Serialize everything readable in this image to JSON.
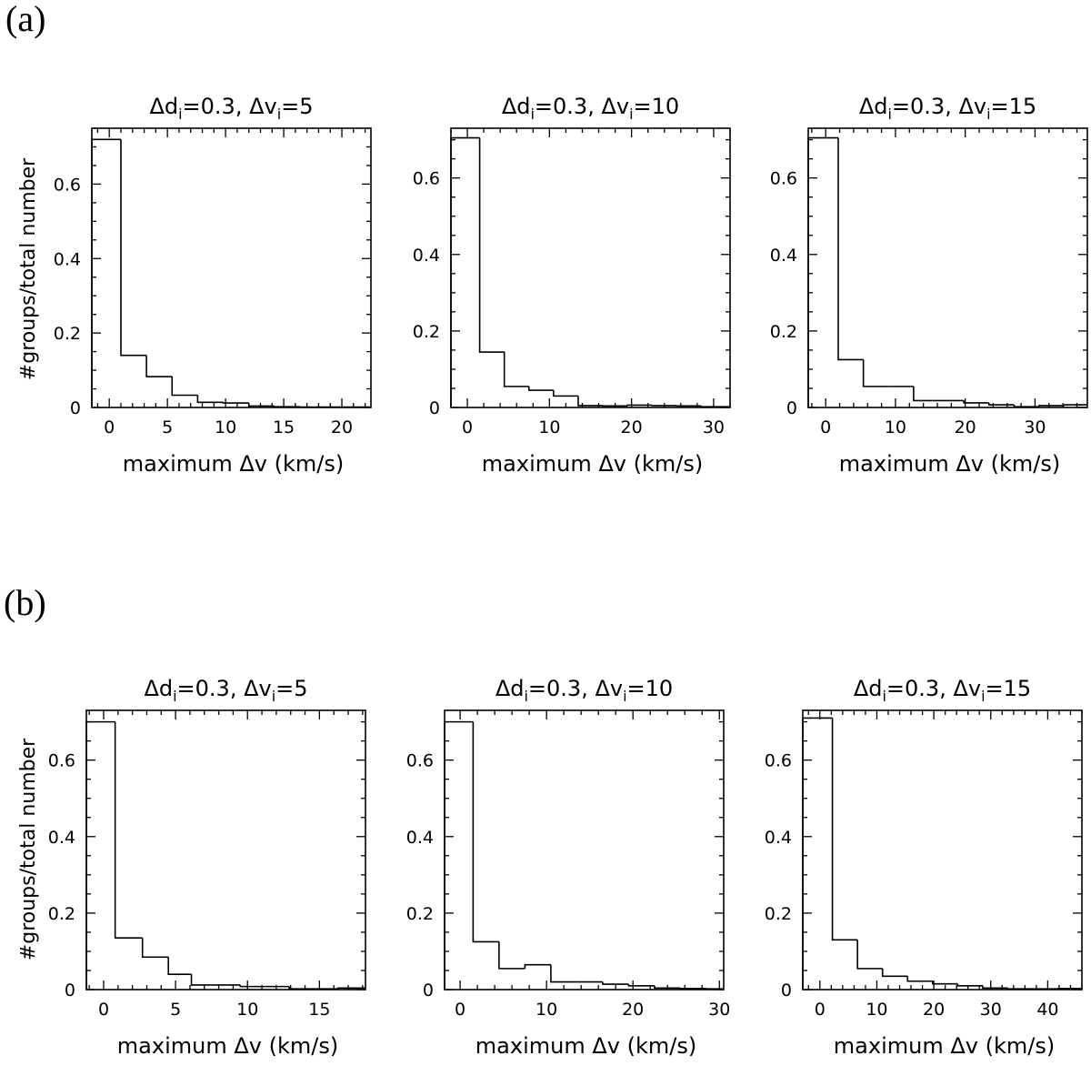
{
  "figure": {
    "panel_a_label": "(a)",
    "panel_b_label": "(b)",
    "ylabel": "#groups/total number"
  },
  "chart_data": [
    {
      "panel": "(a)",
      "type": "bar",
      "title": "Δdi=0.3, Δvi=5",
      "title_parts": {
        "p1": "Δd",
        "s1": "i",
        "p2": "=0.3,  Δv",
        "s2": "i",
        "p3": "=5"
      },
      "xlabel": "maximum Δv (km/s)",
      "ylabel": "#groups/total number",
      "xlim": [
        -1.5,
        22.5
      ],
      "ylim": [
        0,
        0.75
      ],
      "xticks": [
        0,
        5,
        10,
        15,
        20
      ],
      "yticks": [
        0,
        0.2,
        0.4,
        0.6
      ],
      "bin_edges": [
        -1.5,
        1,
        3.2,
        5.4,
        7.6,
        9.8,
        12,
        14.2,
        16.4,
        18.6,
        20.8,
        22.5
      ],
      "values": [
        0.72,
        0.14,
        0.083,
        0.033,
        0.014,
        0.012,
        0.004,
        0.002,
        0.001,
        0.001,
        0.001
      ]
    },
    {
      "panel": "(a)",
      "type": "bar",
      "title": "Δdi=0.3, Δvi=10",
      "title_parts": {
        "p1": "Δd",
        "s1": "i",
        "p2": "=0.3,  Δv",
        "s2": "i",
        "p3": "=10"
      },
      "xlabel": "maximum Δv (km/s)",
      "ylabel": "#groups/total number",
      "xlim": [
        -2,
        32
      ],
      "ylim": [
        0,
        0.73
      ],
      "xticks": [
        0,
        10,
        20,
        30
      ],
      "yticks": [
        0,
        0.2,
        0.4,
        0.6
      ],
      "bin_edges": [
        -2,
        1.5,
        4.5,
        7.5,
        10.5,
        13.5,
        16.5,
        19.5,
        22.5,
        25.5,
        28.5,
        32
      ],
      "values": [
        0.705,
        0.145,
        0.055,
        0.045,
        0.03,
        0.005,
        0.004,
        0.006,
        0.005,
        0.004,
        0.002
      ]
    },
    {
      "panel": "(a)",
      "type": "bar",
      "title": "Δdi=0.3, Δvi=15",
      "title_parts": {
        "p1": "Δd",
        "s1": "i",
        "p2": "=0.3,  Δv",
        "s2": "i",
        "p3": "=15"
      },
      "xlabel": "maximum Δv (km/s)",
      "ylabel": "#groups/total number",
      "xlim": [
        -2.5,
        37.5
      ],
      "ylim": [
        0,
        0.73
      ],
      "xticks": [
        0,
        10,
        20,
        30
      ],
      "yticks": [
        0,
        0.2,
        0.4,
        0.6
      ],
      "bin_edges": [
        -2.5,
        1.8,
        5.4,
        9,
        12.6,
        16.2,
        19.8,
        23.4,
        27,
        30.6,
        34.2,
        37.5
      ],
      "values": [
        0.705,
        0.125,
        0.055,
        0.055,
        0.018,
        0.018,
        0.012,
        0.007,
        0.002,
        0.005,
        0.007
      ]
    },
    {
      "panel": "(b)",
      "type": "bar",
      "title": "Δdi=0.3, Δvi=5",
      "title_parts": {
        "p1": "Δd",
        "s1": "i",
        "p2": "=0.3,  Δv",
        "s2": "i",
        "p3": "=5"
      },
      "xlabel": "maximum Δv (km/s)",
      "ylabel": "#groups/total number",
      "xlim": [
        -1.2,
        18.2
      ],
      "ylim": [
        0,
        0.73
      ],
      "xticks": [
        0,
        5,
        10,
        15
      ],
      "yticks": [
        0,
        0.2,
        0.4,
        0.6
      ],
      "bin_edges": [
        -1.2,
        0.8,
        2.7,
        4.5,
        6.1,
        7.8,
        9.5,
        11.2,
        12.9,
        14.6,
        16.3,
        18.2
      ],
      "values": [
        0.7,
        0.135,
        0.085,
        0.04,
        0.012,
        0.012,
        0.008,
        0.008,
        0.002,
        0.002,
        0.004
      ]
    },
    {
      "panel": "(b)",
      "type": "bar",
      "title": "Δdi=0.3, Δvi=10",
      "title_parts": {
        "p1": "Δd",
        "s1": "i",
        "p2": "=0.3,  Δv",
        "s2": "i",
        "p3": "=10"
      },
      "xlabel": "maximum Δv (km/s)",
      "ylabel": "#groups/total number",
      "xlim": [
        -1.8,
        30.5
      ],
      "ylim": [
        0,
        0.73
      ],
      "xticks": [
        0,
        10,
        20,
        30
      ],
      "yticks": [
        0,
        0.2,
        0.4,
        0.6
      ],
      "bin_edges": [
        -1.8,
        1.5,
        4.5,
        7.5,
        10.5,
        13.5,
        16.5,
        19.5,
        22.5,
        25.5,
        28.5,
        30.5
      ],
      "values": [
        0.7,
        0.125,
        0.055,
        0.065,
        0.02,
        0.02,
        0.014,
        0.01,
        0.004,
        0.003,
        0.002
      ]
    },
    {
      "panel": "(b)",
      "type": "bar",
      "title": "Δdi=0.3, Δvi=15",
      "title_parts": {
        "p1": "Δd",
        "s1": "i",
        "p2": "=0.3,  Δv",
        "s2": "i",
        "p3": "=15"
      },
      "xlabel": "maximum Δv (km/s)",
      "ylabel": "#groups/total number",
      "xlim": [
        -3,
        46
      ],
      "ylim": [
        0,
        0.73
      ],
      "xticks": [
        0,
        10,
        20,
        30,
        40
      ],
      "yticks": [
        0,
        0.2,
        0.4,
        0.6
      ],
      "bin_edges": [
        -3,
        2.2,
        6.6,
        11,
        15.4,
        19.8,
        24.2,
        28.6,
        33,
        37.4,
        41.8,
        46
      ],
      "values": [
        0.71,
        0.13,
        0.055,
        0.035,
        0.022,
        0.015,
        0.01,
        0.004,
        0.002,
        0.002,
        0.003
      ]
    }
  ]
}
